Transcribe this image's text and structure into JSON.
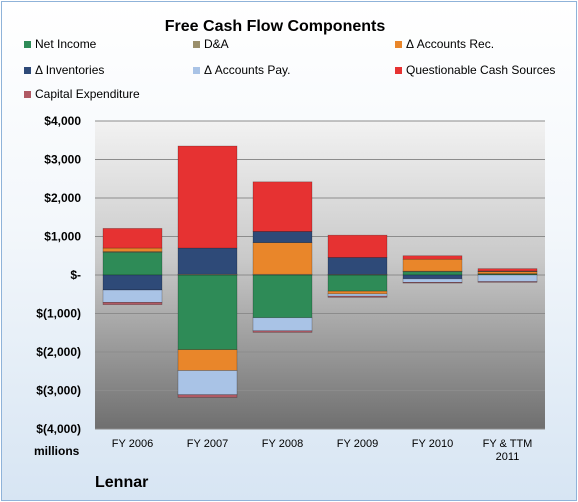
{
  "chart_data": {
    "type": "bar",
    "stacked": true,
    "title": "Free Cash Flow Components",
    "categories": [
      "FY 2006",
      "FY 2007",
      "FY 2008",
      "FY 2009",
      "FY 2010",
      "FY & TTM 2011"
    ],
    "ylim": [
      -4000,
      4000
    ],
    "yticks": [
      4000,
      3000,
      2000,
      1000,
      0,
      -1000,
      -2000,
      -3000,
      -4000
    ],
    "ytick_labels": [
      "$4,000",
      "$3,000",
      "$2,000",
      "$1,000",
      "$-",
      "$(1,000)",
      "$(2,000)",
      "$(3,000)",
      "$(4,000)"
    ],
    "ylabel": "millions",
    "grid": true,
    "legend_position": "top",
    "series": [
      {
        "name": "Net Income",
        "color": "#2e8b57",
        "values": [
          590,
          -1940,
          -1110,
          -420,
          90,
          25
        ]
      },
      {
        "name": "D&A",
        "color": "#9a8f6c",
        "values": [
          20,
          20,
          20,
          15,
          10,
          10
        ]
      },
      {
        "name": "Δ Accounts Rec.",
        "color": "#e9862a",
        "values": [
          90,
          -540,
          820,
          -70,
          310,
          60
        ]
      },
      {
        "name": "Δ Inventories",
        "color": "#2e4a78",
        "values": [
          -390,
          680,
          290,
          440,
          -100,
          10
        ]
      },
      {
        "name": "Δ Accounts Pay.",
        "color": "#a9c3e6",
        "values": [
          -320,
          -630,
          -340,
          -60,
          -90,
          -170
        ]
      },
      {
        "name": "Questionable Cash Sources",
        "color": "#e63232",
        "values": [
          510,
          2650,
          1290,
          580,
          90,
          60
        ]
      },
      {
        "name": "Capital Expenditure",
        "color": "#b05a64",
        "values": [
          -60,
          -70,
          -40,
          -30,
          -20,
          -20
        ]
      }
    ]
  },
  "company": "Lennar"
}
